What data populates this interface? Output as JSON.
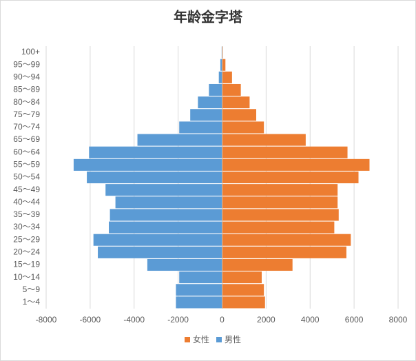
{
  "chart_data": {
    "type": "bar",
    "orientation": "horizontal",
    "title": "年龄金字塔",
    "categories": [
      "100+",
      "95～99",
      "90～94",
      "85～89",
      "80～84",
      "75～79",
      "70～74",
      "65～69",
      "60～64",
      "55～59",
      "50～54",
      "45～49",
      "40～44",
      "35～39",
      "30～34",
      "25～29",
      "20～24",
      "15～19",
      "10～14",
      "5～9",
      "1～4"
    ],
    "series": [
      {
        "name": "女性",
        "color": "#ED7D31",
        "values": [
          30,
          150,
          450,
          850,
          1250,
          1550,
          1900,
          3800,
          5700,
          6700,
          6200,
          5250,
          5250,
          5300,
          5100,
          5850,
          5650,
          3200,
          1800,
          1900,
          1950
        ]
      },
      {
        "name": "男性",
        "color": "#5B9BD5",
        "values": [
          -20,
          -80,
          -150,
          -600,
          -1100,
          -1450,
          -1950,
          -3850,
          -6050,
          -6750,
          -6150,
          -5300,
          -4850,
          -5100,
          -5150,
          -5850,
          -5650,
          -3400,
          -1950,
          -2100,
          -2100
        ]
      }
    ],
    "xlim": [
      -8000,
      8000
    ],
    "xticks": [
      -8000,
      -6000,
      -4000,
      -2000,
      0,
      2000,
      4000,
      6000,
      8000
    ],
    "grid": true,
    "legend": "bottom"
  }
}
